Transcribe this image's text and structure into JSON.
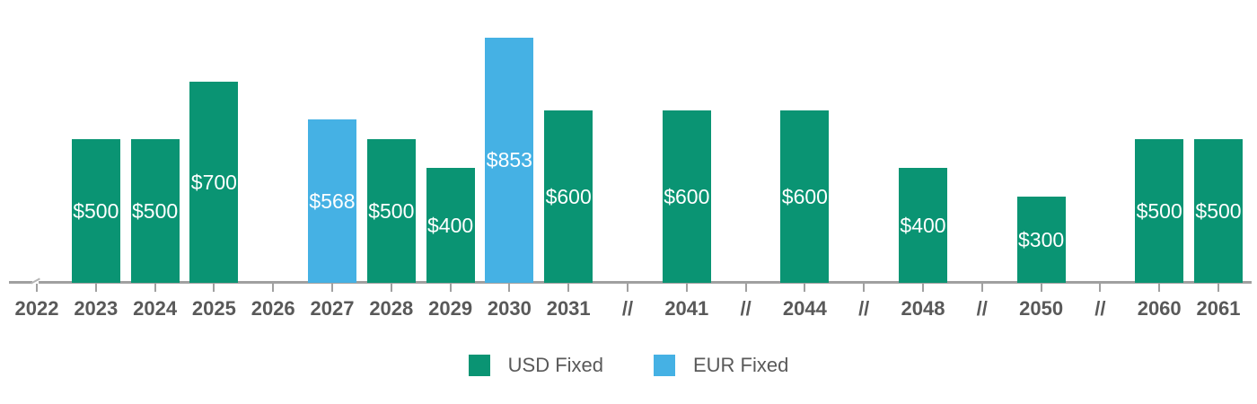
{
  "chart_data": {
    "type": "bar",
    "title": "",
    "xlabel": "",
    "ylabel": "",
    "categories": [
      "2022",
      "2023",
      "2024",
      "2025",
      "2026",
      "2027",
      "2028",
      "2029",
      "2030",
      "2031",
      "//",
      "2041",
      "//",
      "2044",
      "//",
      "2048",
      "//",
      "2050",
      "//",
      "2060",
      "2061"
    ],
    "series": [
      {
        "name": "USD Fixed",
        "color": "#0a9473",
        "values": [
          null,
          500,
          500,
          700,
          null,
          null,
          500,
          400,
          null,
          600,
          null,
          600,
          null,
          600,
          null,
          400,
          null,
          300,
          null,
          500,
          500
        ]
      },
      {
        "name": "EUR Fixed",
        "color": "#45b1e4",
        "values": [
          null,
          null,
          null,
          null,
          null,
          568,
          null,
          null,
          853,
          null,
          null,
          null,
          null,
          null,
          null,
          null,
          null,
          null,
          null,
          null,
          null
        ]
      }
    ],
    "value_label_prefix": "$",
    "value_label_color": "#ffffff",
    "axis": {
      "ylim": [
        0,
        900
      ],
      "grid": false,
      "baseline_color": "#a0a0a0",
      "tick_color": "#a0a0a0",
      "label_color": "#595959",
      "break_label": "//",
      "has_left_break_mark": true
    },
    "legend": {
      "position": "bottom",
      "items": [
        {
          "label": "USD Fixed",
          "color": "#0a9473"
        },
        {
          "label": "EUR Fixed",
          "color": "#45b1e4"
        }
      ]
    }
  }
}
